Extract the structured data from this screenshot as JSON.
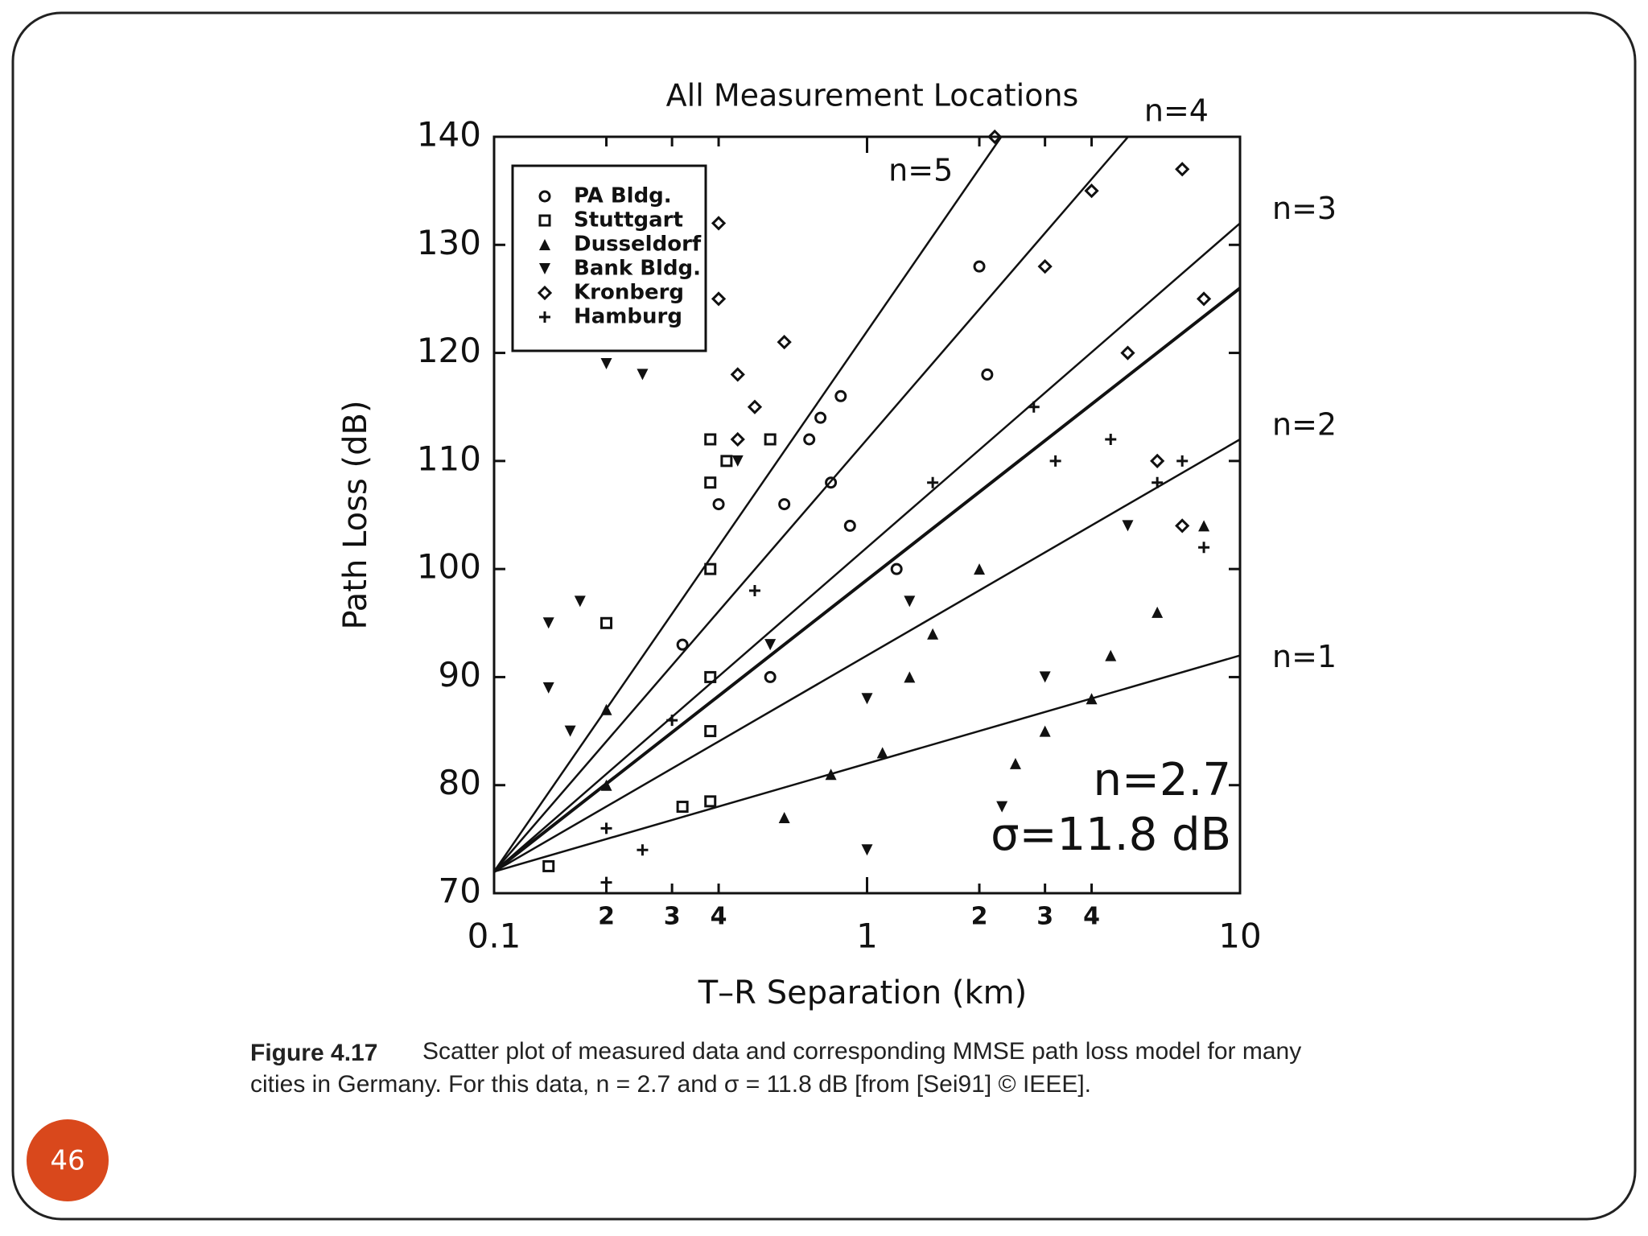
{
  "chart_data": {
    "type": "scatter",
    "title": "All Measurement Locations",
    "x_label": "T–R Separation (km)",
    "y_label": "Path Loss (dB)",
    "log_x": true,
    "grid": false,
    "legend_position": "upper-left",
    "xlim": [
      0.1,
      10
    ],
    "xticks": [
      0.1,
      {
        "value": 0.2,
        "label": "2"
      },
      {
        "value": 0.3,
        "label": "3"
      },
      {
        "value": 0.4,
        "label": "4"
      },
      1,
      {
        "value": 2,
        "label": "2"
      },
      {
        "value": 3,
        "label": "3"
      },
      {
        "value": 4,
        "label": "4"
      },
      10
    ],
    "ylim": [
      70,
      140
    ],
    "yticks": [
      70,
      80,
      90,
      100,
      110,
      120,
      130,
      140
    ],
    "series": [
      {
        "name": "PA Bldg.",
        "marker": "circle",
        "color": "#111111",
        "x": [
          0.32,
          0.55,
          0.7,
          0.75,
          0.8,
          0.85,
          0.9,
          1.2,
          2.0,
          2.1,
          0.6,
          0.4
        ],
        "values": [
          93,
          90,
          112,
          114,
          108,
          116,
          104,
          100,
          128,
          118,
          106,
          106
        ]
      },
      {
        "name": "Stuttgart",
        "marker": "square",
        "color": "#111111",
        "x": [
          0.14,
          0.32,
          0.38,
          0.38,
          0.38,
          0.38,
          0.38,
          0.38,
          0.42,
          0.55,
          0.2
        ],
        "values": [
          72.5,
          78,
          78.5,
          85,
          90,
          100,
          108,
          112,
          110,
          112,
          95
        ]
      },
      {
        "name": "Dusseldorf",
        "marker": "triangle-up",
        "color": "#111111",
        "x": [
          0.2,
          0.2,
          0.6,
          0.8,
          1.5,
          2,
          2.5,
          3,
          4,
          4.5,
          6,
          8,
          1.1,
          1.3
        ],
        "values": [
          87,
          80,
          77,
          81,
          94,
          100,
          82,
          85,
          88,
          92,
          96,
          104,
          83,
          90
        ]
      },
      {
        "name": "Bank Bldg.",
        "marker": "triangle-down",
        "color": "#111111",
        "x": [
          0.14,
          0.14,
          0.16,
          0.17,
          0.2,
          0.25,
          0.45,
          0.55,
          1,
          1,
          1.3,
          2.3,
          3,
          5
        ],
        "values": [
          95,
          89,
          85,
          97,
          119,
          118,
          110,
          93,
          88,
          74,
          97,
          78,
          90,
          104
        ]
      },
      {
        "name": "Kronberg",
        "marker": "diamond",
        "color": "#111111",
        "x": [
          0.4,
          0.4,
          0.45,
          0.45,
          0.5,
          0.6,
          2.2,
          3,
          4,
          5,
          7,
          8,
          6,
          7
        ],
        "values": [
          132,
          125,
          118,
          112,
          115,
          121,
          140,
          128,
          135,
          120,
          137,
          125,
          110,
          104
        ]
      },
      {
        "name": "Hamburg",
        "marker": "plus",
        "color": "#111111",
        "x": [
          0.2,
          0.2,
          0.25,
          0.3,
          1.5,
          2.8,
          3.2,
          4.5,
          6,
          7,
          8,
          0.5
        ],
        "values": [
          71,
          76,
          74,
          86,
          108,
          115,
          110,
          112,
          108,
          110,
          102,
          98
        ]
      }
    ],
    "lines": [
      {
        "label": "n=1",
        "x": [
          0.1,
          10
        ],
        "values": [
          72,
          92
        ]
      },
      {
        "label": "n=2",
        "x": [
          0.1,
          10
        ],
        "values": [
          72,
          112
        ]
      },
      {
        "label": "n=3",
        "x": [
          0.1,
          10
        ],
        "values": [
          72,
          132
        ]
      },
      {
        "label": "n=4",
        "x": [
          0.1,
          5.01
        ],
        "values": [
          72,
          140
        ]
      },
      {
        "label": "n=5",
        "x": [
          0.1,
          2.29
        ],
        "values": [
          72,
          140
        ]
      },
      {
        "x": [
          0.1,
          10
        ],
        "values": [
          72,
          126
        ]
      }
    ],
    "annotations": [
      "n=2.7",
      "σ=11.8 dB"
    ]
  },
  "caption": {
    "label": "Figure 4.17",
    "lines": [
      "Scatter plot of measured data and corresponding MMSE path loss model for many",
      "cities in Germany. For this data, n = 2.7 and σ = 11.8 dB [from [Sei91] © IEEE]."
    ]
  },
  "page_number": "46"
}
